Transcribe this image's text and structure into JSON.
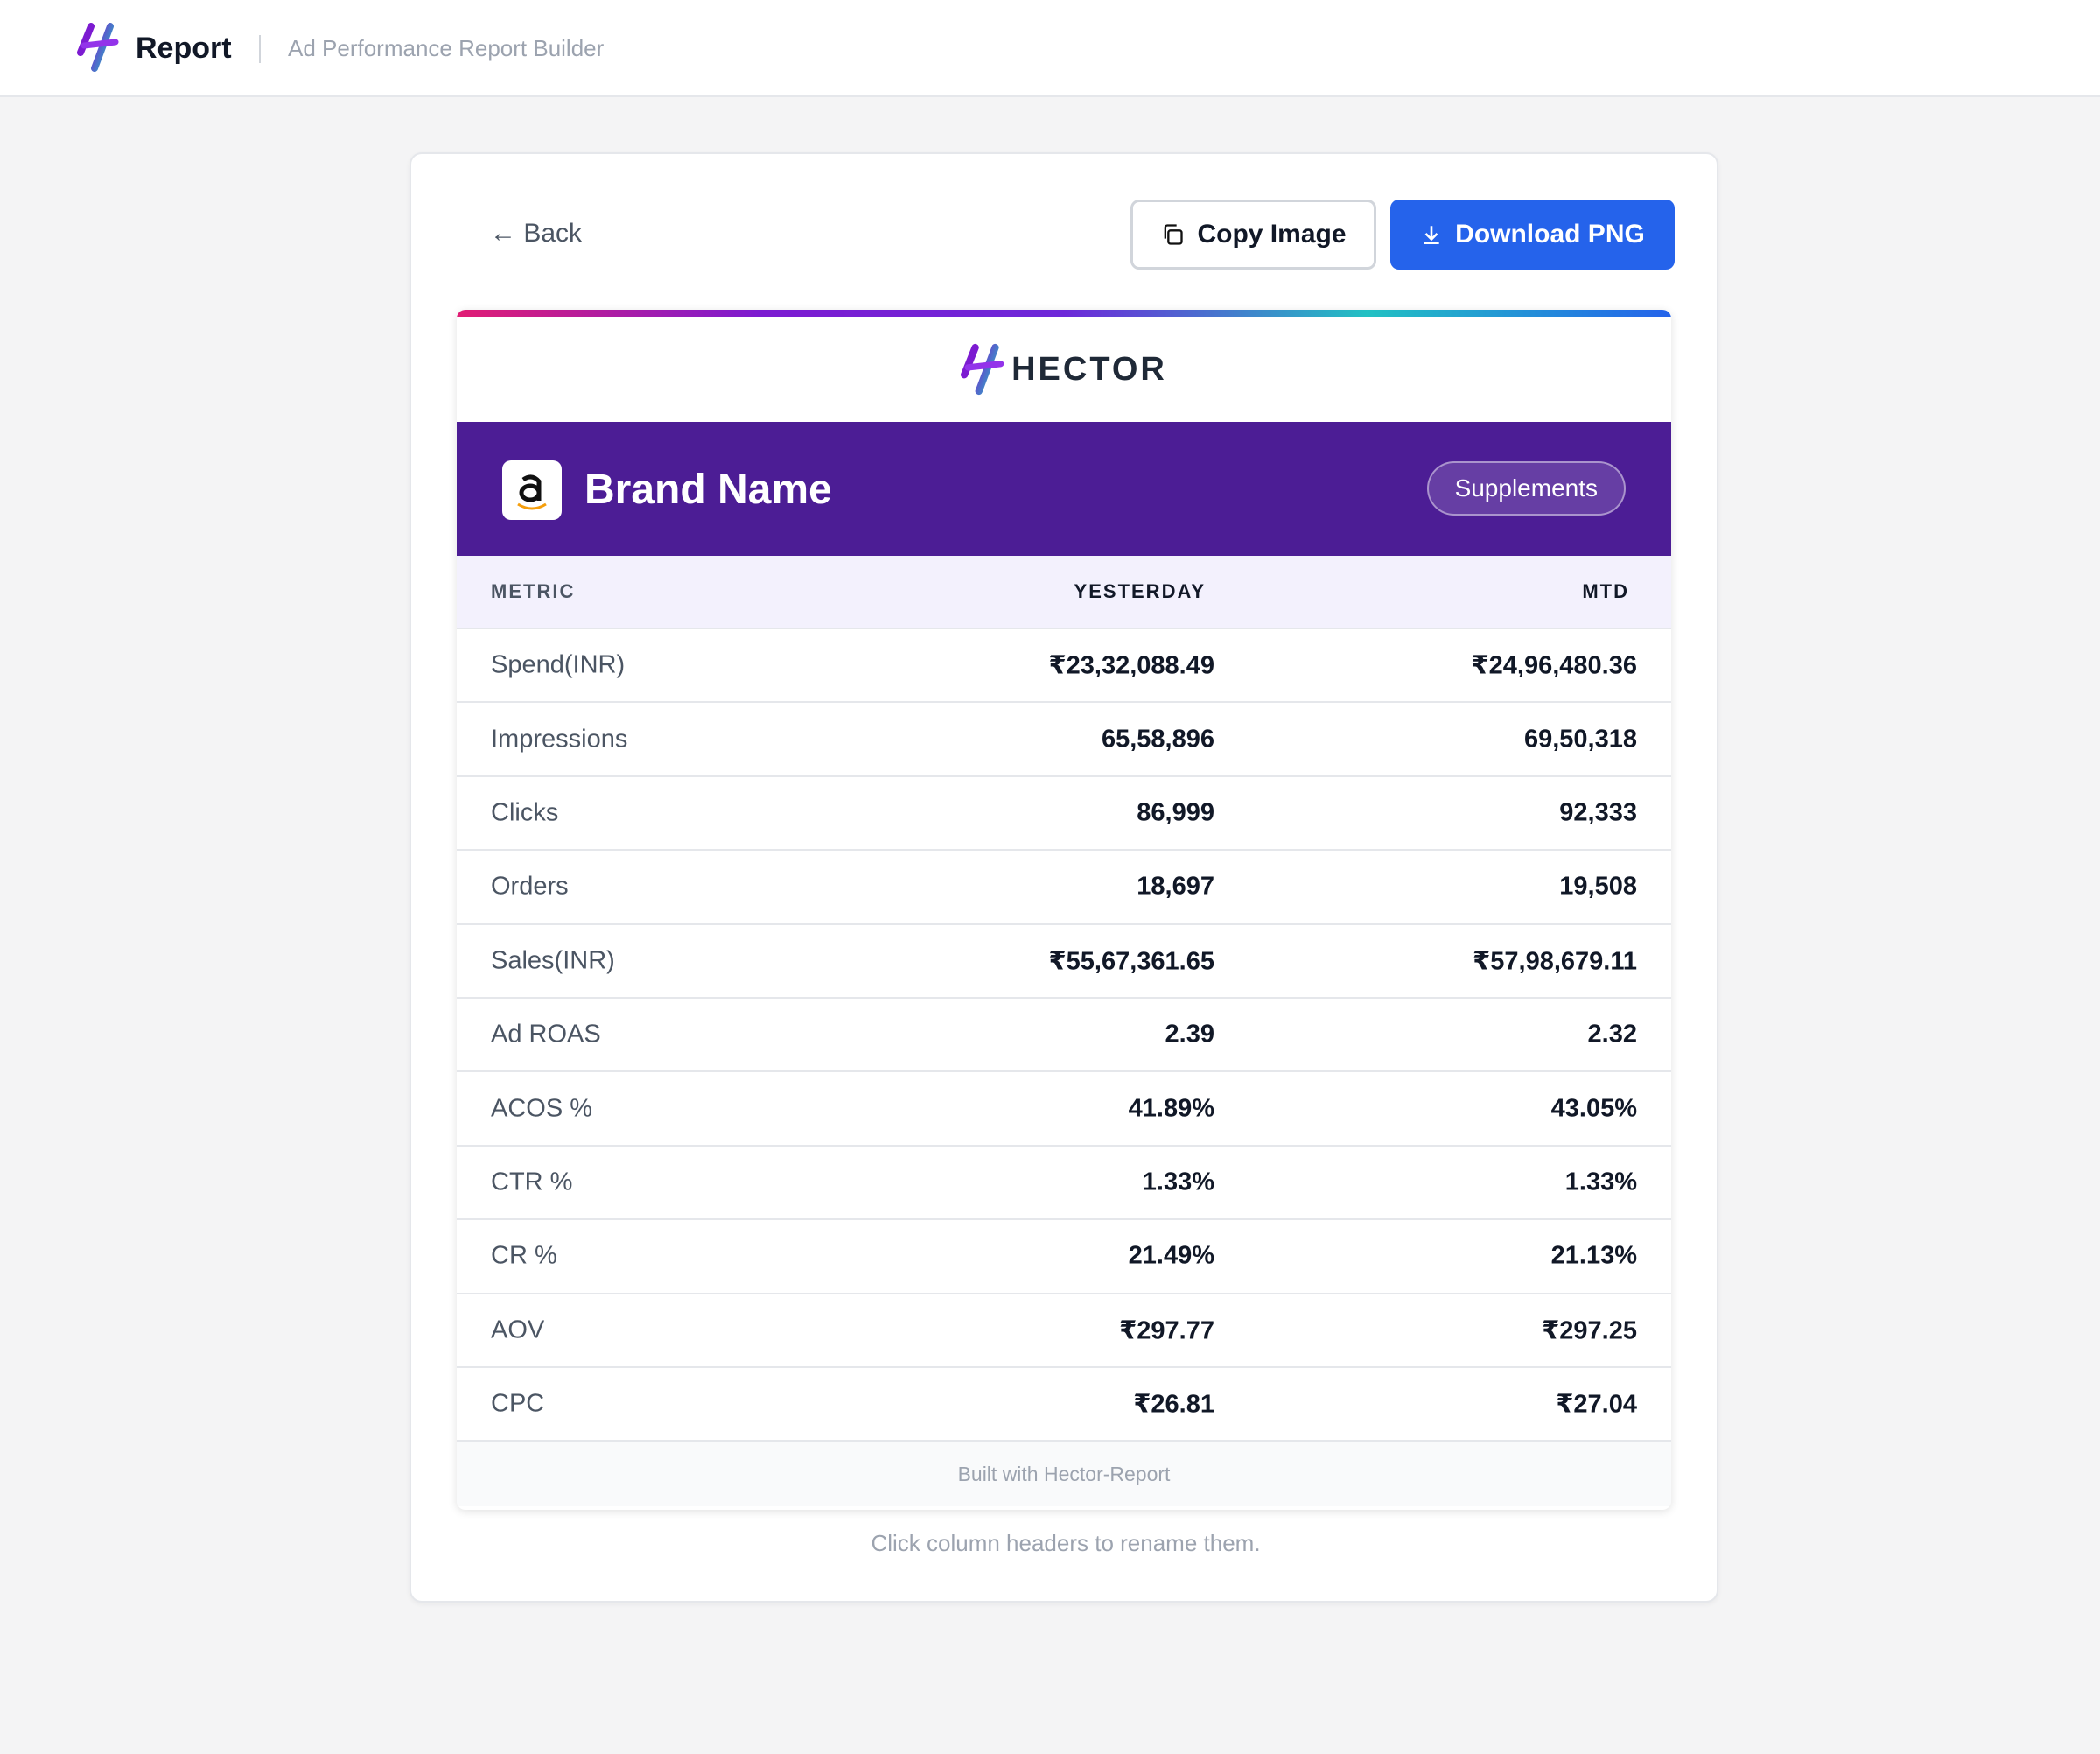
{
  "header": {
    "title": "Report",
    "subtitle": "Ad Performance Report Builder"
  },
  "toolbar": {
    "back": "Back",
    "copy": "Copy Image",
    "download": "Download PNG"
  },
  "report": {
    "logo_text": "HECTOR",
    "brand": "Brand Name",
    "category": "Supplements",
    "table": {
      "columns": [
        "METRIC",
        "YESTERDAY",
        "MTD"
      ],
      "rows": [
        [
          "Spend(INR)",
          "₹23,32,088.49",
          "₹24,96,480.36"
        ],
        [
          "Impressions",
          "65,58,896",
          "69,50,318"
        ],
        [
          "Clicks",
          "86,999",
          "92,333"
        ],
        [
          "Orders",
          "18,697",
          "19,508"
        ],
        [
          "Sales(INR)",
          "₹55,67,361.65",
          "₹57,98,679.11"
        ],
        [
          "Ad ROAS",
          "2.39",
          "2.32"
        ],
        [
          "ACOS %",
          "41.89%",
          "43.05%"
        ],
        [
          "CTR %",
          "1.33%",
          "1.33%"
        ],
        [
          "CR %",
          "21.49%",
          "21.13%"
        ],
        [
          "AOV",
          "₹297.77",
          "₹297.25"
        ],
        [
          "CPC",
          "₹26.81",
          "₹27.04"
        ]
      ]
    },
    "footer": "Built with Hector-Report"
  },
  "hint": "Click column headers to rename them."
}
